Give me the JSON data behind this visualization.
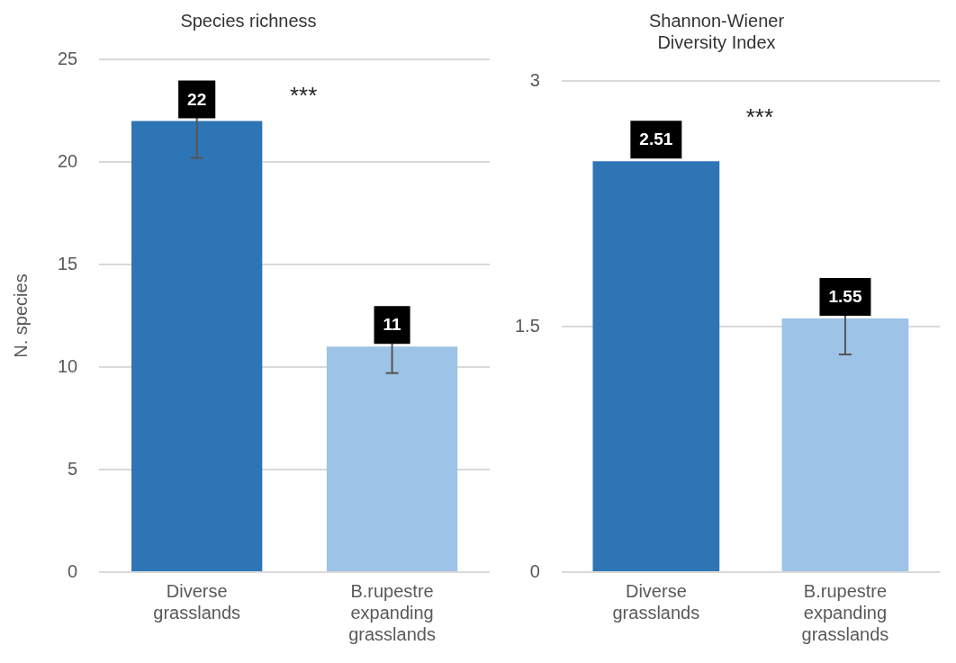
{
  "chart_data": [
    {
      "type": "bar",
      "title": "Species richness",
      "ylabel": "N. species",
      "categories": [
        "Diverse grasslands",
        "B.rupestre expanding grasslands"
      ],
      "values": [
        22,
        11
      ],
      "colors": [
        "#2e75b6",
        "#9dc3e6"
      ],
      "errors": [
        1.8,
        1.3
      ],
      "ylim": [
        0,
        25
      ],
      "yticks": [
        0,
        5,
        10,
        15,
        20,
        25
      ],
      "grid": "y",
      "data_labels": true,
      "annotations": [
        "***"
      ]
    },
    {
      "type": "bar",
      "title": "Shannon-Wiener Diversity Index",
      "categories": [
        "Diverse grasslands",
        "B.rupestre expanding grasslands"
      ],
      "values": [
        2.51,
        1.55
      ],
      "colors": [
        "#2e75b6",
        "#9dc3e6"
      ],
      "errors": [
        null,
        0.22
      ],
      "ylim": [
        0,
        3
      ],
      "yticks": [
        0,
        1.5,
        3
      ],
      "grid": "y",
      "data_labels": true,
      "annotations": [
        "***"
      ]
    }
  ]
}
